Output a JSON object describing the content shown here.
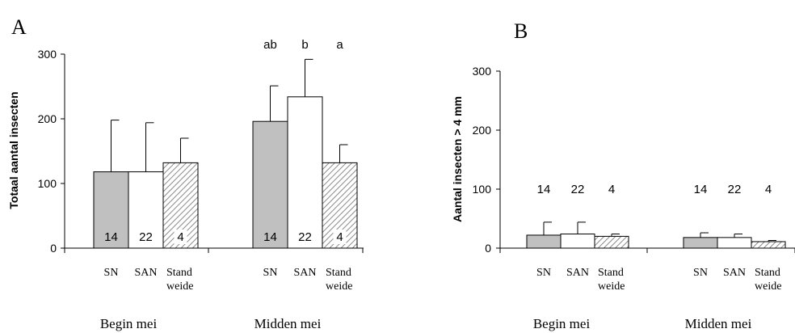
{
  "chart_data": [
    {
      "type": "bar",
      "panel_label": "A",
      "ylabel": "Totaal aantal insecten",
      "ylim": [
        0,
        300
      ],
      "yticks": [
        "0",
        "100",
        "200",
        "300"
      ],
      "groups": [
        "Begin mei",
        "Midden mei"
      ],
      "category_labels": [
        "SN",
        "SAN",
        "Stand weide"
      ],
      "category_label_lines": [
        [
          "SN"
        ],
        [
          "SAN"
        ],
        [
          "Stand",
          "weide"
        ]
      ],
      "series": [
        {
          "values": [
            118,
            196
          ],
          "errors": [
            80,
            55
          ],
          "n": [
            "14",
            "14"
          ],
          "sig": [
            "",
            "ab"
          ],
          "fill": "gray"
        },
        {
          "values": [
            118,
            234
          ],
          "errors": [
            76,
            58
          ],
          "n": [
            "22",
            "22"
          ],
          "sig": [
            "",
            "b"
          ],
          "fill": "white"
        },
        {
          "values": [
            132,
            132
          ],
          "errors": [
            38,
            28
          ],
          "n": [
            "4",
            "4"
          ],
          "sig": [
            "",
            "a"
          ],
          "fill": "hatched"
        }
      ],
      "n_label_position": "inside-bottom"
    },
    {
      "type": "bar",
      "panel_label": "B",
      "ylabel": "Aantal insecten > 4 mm",
      "ylim": [
        0,
        300
      ],
      "yticks": [
        "0",
        "100",
        "200",
        "300"
      ],
      "groups": [
        "Begin mei",
        "Midden mei"
      ],
      "category_labels": [
        "SN",
        "SAN",
        "Stand weide"
      ],
      "category_label_lines": [
        [
          "SN"
        ],
        [
          "SAN"
        ],
        [
          "Stand",
          "weide"
        ]
      ],
      "series": [
        {
          "values": [
            22,
            18
          ],
          "errors": [
            22,
            8
          ],
          "n": [
            "14",
            "14"
          ],
          "sig": [
            "",
            ""
          ],
          "fill": "gray"
        },
        {
          "values": [
            24,
            18
          ],
          "errors": [
            20,
            6
          ],
          "n": [
            "22",
            "22"
          ],
          "sig": [
            "",
            ""
          ],
          "fill": "white"
        },
        {
          "values": [
            20,
            11
          ],
          "errors": [
            4,
            2
          ],
          "n": [
            "4",
            "4"
          ],
          "sig": [
            "",
            ""
          ],
          "fill": "hatched"
        }
      ],
      "n_label_position": "above-at-100"
    }
  ],
  "colors": {
    "gray_bar": "#c0c0c0",
    "white_bar": "#ffffff",
    "hatch": "#8a8a8a",
    "stroke": "#000000"
  }
}
